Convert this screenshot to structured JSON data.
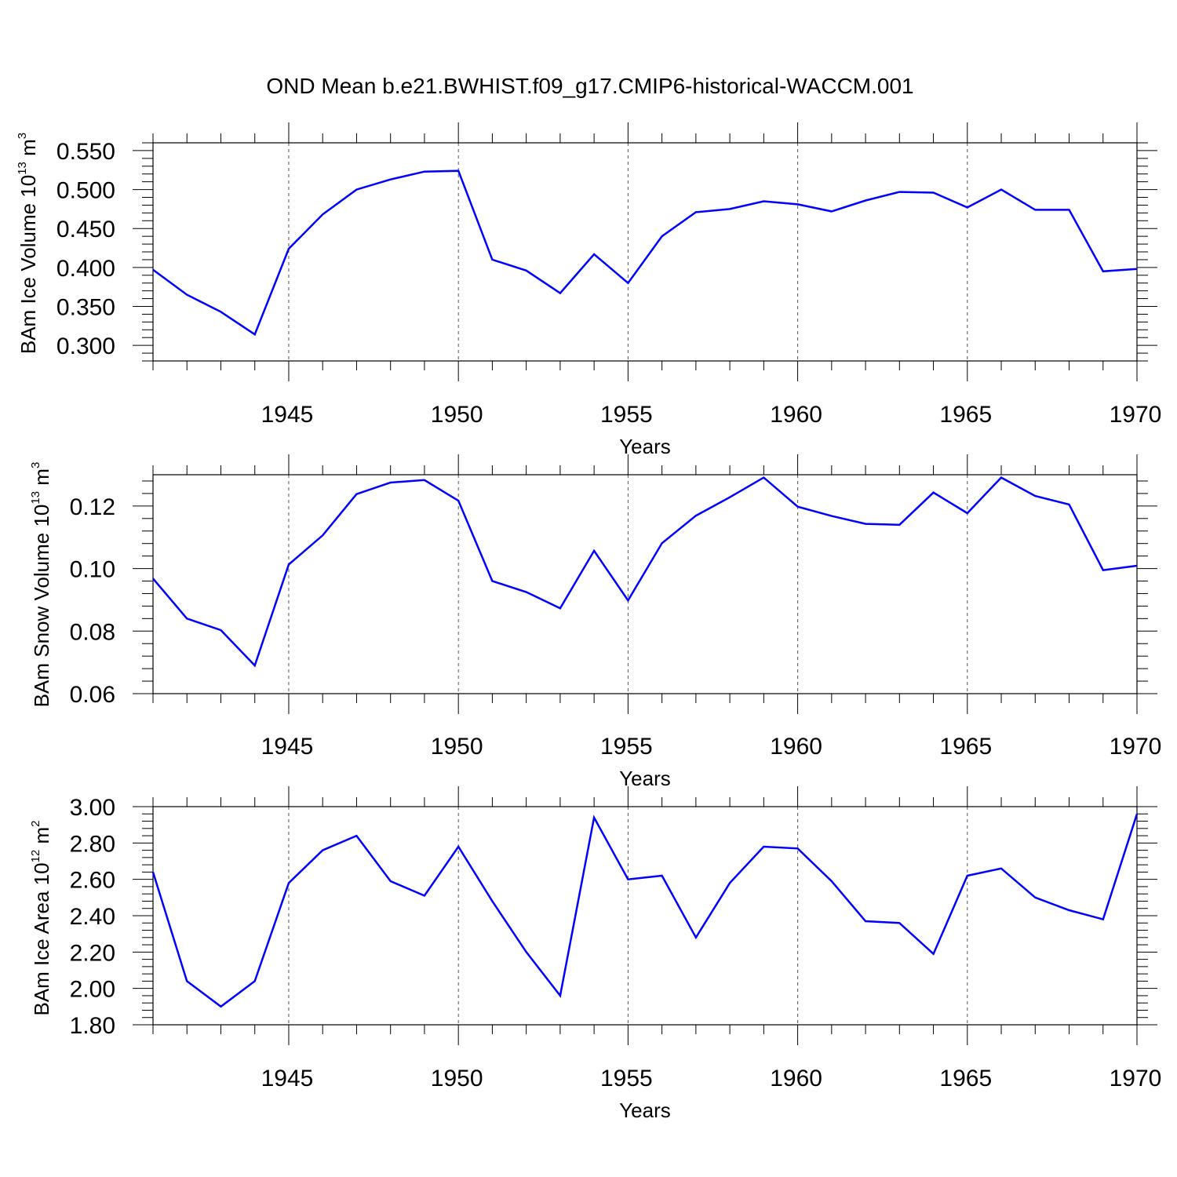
{
  "figure_title": "OND Mean b.e21.BWHIST.f09_g17.CMIP6-historical-WACCM.001",
  "line_color": "#0000ff",
  "chart_data": [
    {
      "type": "line",
      "ylabel_main": "BAm Ice Volume 10",
      "ylabel_exp": "13",
      "ylabel_unit": " m",
      "ylabel_unit_exp": "3",
      "xlabel": "Years",
      "xlim": [
        1941,
        1970
      ],
      "ylim": [
        0.28,
        0.56
      ],
      "yticks": [
        0.3,
        0.35,
        0.4,
        0.45,
        0.5,
        0.55
      ],
      "yticklabels": [
        "0.300",
        "0.350",
        "0.400",
        "0.450",
        "0.500",
        "0.550"
      ],
      "xticks": [
        1945,
        1950,
        1955,
        1960,
        1965,
        1970
      ],
      "xticklabels": [
        "1945",
        "1950",
        "1955",
        "1960",
        "1965",
        "1970"
      ],
      "x": [
        1941,
        1942,
        1943,
        1944,
        1945,
        1946,
        1947,
        1948,
        1949,
        1950,
        1951,
        1952,
        1953,
        1954,
        1955,
        1956,
        1957,
        1958,
        1959,
        1960,
        1961,
        1962,
        1963,
        1964,
        1965,
        1966,
        1967,
        1968,
        1969,
        1970
      ],
      "values": [
        0.397,
        0.365,
        0.343,
        0.314,
        0.424,
        0.468,
        0.5,
        0.513,
        0.523,
        0.524,
        0.41,
        0.396,
        0.367,
        0.417,
        0.38,
        0.44,
        0.471,
        0.475,
        0.485,
        0.481,
        0.472,
        0.486,
        0.497,
        0.496,
        0.477,
        0.5,
        0.474,
        0.474,
        0.395,
        0.398
      ]
    },
    {
      "type": "line",
      "ylabel_main": "BAm Snow Volume 10",
      "ylabel_exp": "13",
      "ylabel_unit": " m",
      "ylabel_unit_exp": "3",
      "xlabel": "Years",
      "xlim": [
        1941,
        1970
      ],
      "ylim": [
        0.06,
        0.13
      ],
      "yticks": [
        0.06,
        0.08,
        0.1,
        0.12
      ],
      "yticklabels": [
        "0.06",
        "0.08",
        "0.10",
        "0.12"
      ],
      "xticks": [
        1945,
        1950,
        1955,
        1960,
        1965,
        1970
      ],
      "xticklabels": [
        "1945",
        "1950",
        "1955",
        "1960",
        "1965",
        "1970"
      ],
      "x": [
        1941,
        1942,
        1943,
        1944,
        1945,
        1946,
        1947,
        1948,
        1949,
        1950,
        1951,
        1952,
        1953,
        1954,
        1955,
        1956,
        1957,
        1958,
        1959,
        1960,
        1961,
        1962,
        1963,
        1964,
        1965,
        1966,
        1967,
        1968,
        1969,
        1970
      ],
      "values": [
        0.0968,
        0.084,
        0.0803,
        0.069,
        0.1013,
        0.1106,
        0.1238,
        0.1275,
        0.1283,
        0.1217,
        0.096,
        0.0925,
        0.0873,
        0.1057,
        0.0898,
        0.1081,
        0.1169,
        0.1228,
        0.1291,
        0.1198,
        0.1168,
        0.1143,
        0.114,
        0.1243,
        0.1177,
        0.1291,
        0.1232,
        0.1205,
        0.0995,
        0.1009
      ]
    },
    {
      "type": "line",
      "ylabel_main": "BAm Ice Area 10",
      "ylabel_exp": "12",
      "ylabel_unit": " m",
      "ylabel_unit_exp": "2",
      "xlabel": "Years",
      "xlim": [
        1941,
        1970
      ],
      "ylim": [
        1.8,
        3.0
      ],
      "yticks": [
        1.8,
        2.0,
        2.2,
        2.4,
        2.6,
        2.8,
        3.0
      ],
      "yticklabels": [
        "1.80",
        "2.00",
        "2.20",
        "2.40",
        "2.60",
        "2.80",
        "3.00"
      ],
      "xticks": [
        1945,
        1950,
        1955,
        1960,
        1965,
        1970
      ],
      "xticklabels": [
        "1945",
        "1950",
        "1955",
        "1960",
        "1965",
        "1970"
      ],
      "x": [
        1941,
        1942,
        1943,
        1944,
        1945,
        1946,
        1947,
        1948,
        1949,
        1950,
        1951,
        1952,
        1953,
        1954,
        1955,
        1956,
        1957,
        1958,
        1959,
        1960,
        1961,
        1962,
        1963,
        1964,
        1965,
        1966,
        1967,
        1968,
        1969,
        1970
      ],
      "values": [
        2.64,
        2.04,
        1.9,
        2.04,
        2.58,
        2.76,
        2.84,
        2.59,
        2.51,
        2.78,
        2.48,
        2.2,
        1.96,
        2.94,
        2.6,
        2.62,
        2.28,
        2.58,
        2.78,
        2.77,
        2.59,
        2.37,
        2.36,
        2.19,
        2.62,
        2.66,
        2.5,
        2.43,
        2.38,
        2.96
      ]
    }
  ]
}
